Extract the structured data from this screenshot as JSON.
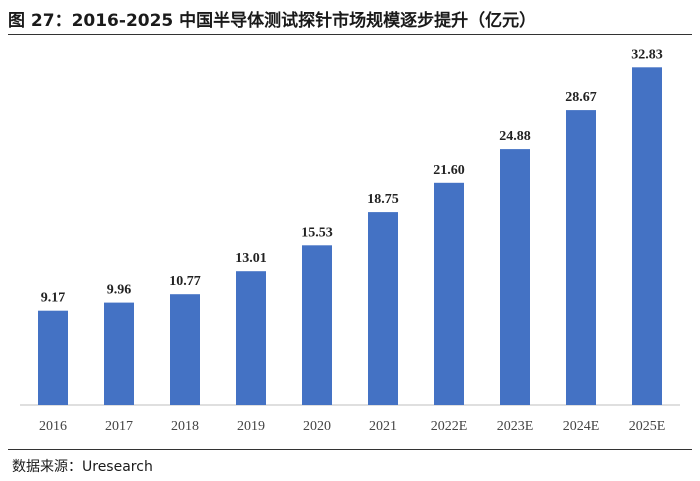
{
  "figure": {
    "title": "图 27：2016-2025 中国半导体测试探针市场规模逐步提升（亿元）",
    "source": "数据来源：Uresearch"
  },
  "chart_data": {
    "type": "bar",
    "title": "图 27：2016-2025 中国半导体测试探针市场规模逐步提升（亿元）",
    "xlabel": "",
    "ylabel": "",
    "unit": "亿元",
    "categories": [
      "2016",
      "2017",
      "2018",
      "2019",
      "2020",
      "2021",
      "2022E",
      "2023E",
      "2024E",
      "2025E"
    ],
    "values": [
      9.17,
      9.96,
      10.77,
      13.01,
      15.53,
      18.75,
      21.6,
      24.88,
      28.67,
      32.83
    ],
    "value_labels": [
      "9.17",
      "9.96",
      "10.77",
      "13.01",
      "15.53",
      "18.75",
      "21.60",
      "24.88",
      "28.67",
      "32.83"
    ],
    "ylim": [
      0,
      35
    ],
    "grid": false,
    "legend": "none",
    "bar_color": "#4472c4"
  }
}
